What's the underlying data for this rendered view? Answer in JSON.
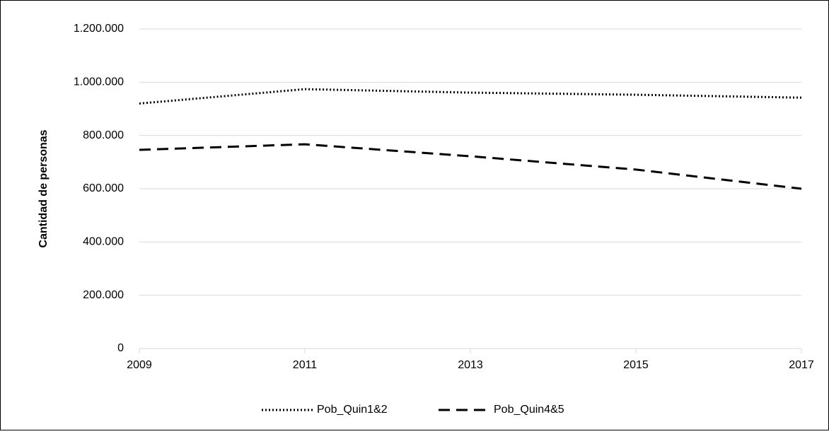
{
  "chart_data": {
    "type": "line",
    "y_label": "Cantidad de personas",
    "x": [
      2009,
      2011,
      2013,
      2015,
      2017
    ],
    "series": [
      {
        "name": "Pob_Quin1&2",
        "color": "#000000",
        "dash": "dotted",
        "values": [
          920000,
          974000,
          961000,
          953000,
          942000
        ]
      },
      {
        "name": "Pob_Quin4&5",
        "color": "#000000",
        "dash": "dashed",
        "values": [
          746000,
          767000,
          722000,
          672000,
          600000
        ]
      }
    ],
    "xlim": [
      2009,
      2017
    ],
    "xticks": [
      2009,
      2011,
      2013,
      2015,
      2017
    ],
    "ylim": [
      0,
      1200000
    ],
    "yticks": [
      0,
      {
        "value": 200000,
        "label": "200.000"
      },
      {
        "value": 400000,
        "label": "400.000"
      },
      {
        "value": 600000,
        "label": "600.000"
      },
      {
        "value": 800000,
        "label": "800.000"
      },
      {
        "value": 1000000,
        "label": "1.000.000"
      },
      {
        "value": 1200000,
        "label": "1.200.000"
      }
    ],
    "grid": true,
    "legend": "bottom"
  }
}
